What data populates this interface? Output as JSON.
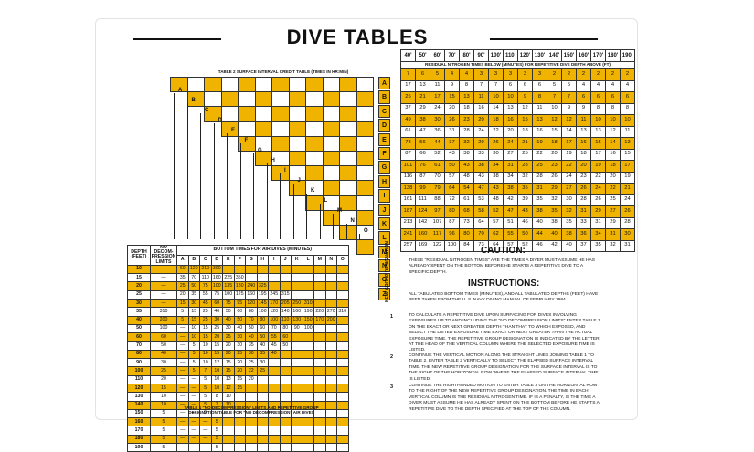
{
  "title": "DIVE TABLES",
  "table3": {
    "caption": "TABLE 3 RESIDUAL NITROGEN TIMES (MINUTES)",
    "depths": [
      "40'",
      "50'",
      "60'",
      "70'",
      "80'",
      "90'",
      "100'",
      "110'",
      "120'",
      "130'",
      "140'",
      "150'",
      "160'",
      "170'",
      "180'",
      "190'"
    ],
    "subheader": "RESIDUAL NITROGEN TIMES BELOW (MINUTES) FOR REPETITIVE DIVE DEPTH ABOVE (FT)",
    "rows": [
      [
        "7",
        "6",
        "5",
        "4",
        "4",
        "3",
        "3",
        "3",
        "3",
        "3",
        "2",
        "2",
        "2",
        "2",
        "2",
        "2"
      ],
      [
        "17",
        "13",
        "11",
        "9",
        "8",
        "7",
        "7",
        "6",
        "6",
        "6",
        "5",
        "5",
        "4",
        "4",
        "4",
        "4"
      ],
      [
        "25",
        "21",
        "17",
        "15",
        "13",
        "11",
        "10",
        "10",
        "9",
        "8",
        "7",
        "7",
        "6",
        "6",
        "6",
        "6"
      ],
      [
        "37",
        "29",
        "24",
        "20",
        "18",
        "16",
        "14",
        "13",
        "12",
        "11",
        "10",
        "9",
        "9",
        "8",
        "8",
        "8"
      ],
      [
        "49",
        "38",
        "30",
        "26",
        "23",
        "20",
        "18",
        "16",
        "15",
        "13",
        "12",
        "12",
        "11",
        "10",
        "10",
        "10"
      ],
      [
        "61",
        "47",
        "36",
        "31",
        "28",
        "24",
        "22",
        "20",
        "18",
        "16",
        "15",
        "14",
        "13",
        "13",
        "12",
        "11"
      ],
      [
        "73",
        "56",
        "44",
        "37",
        "32",
        "29",
        "26",
        "24",
        "21",
        "19",
        "18",
        "17",
        "16",
        "15",
        "14",
        "13"
      ],
      [
        "87",
        "66",
        "52",
        "43",
        "38",
        "33",
        "30",
        "27",
        "25",
        "22",
        "20",
        "19",
        "18",
        "17",
        "16",
        "15"
      ],
      [
        "101",
        "76",
        "61",
        "50",
        "43",
        "38",
        "34",
        "31",
        "28",
        "25",
        "23",
        "22",
        "20",
        "19",
        "18",
        "17"
      ],
      [
        "116",
        "87",
        "70",
        "57",
        "48",
        "43",
        "38",
        "34",
        "32",
        "28",
        "26",
        "24",
        "23",
        "22",
        "20",
        "19"
      ],
      [
        "138",
        "99",
        "79",
        "64",
        "54",
        "47",
        "43",
        "38",
        "35",
        "31",
        "29",
        "27",
        "26",
        "24",
        "22",
        "21"
      ],
      [
        "161",
        "111",
        "88",
        "72",
        "61",
        "53",
        "48",
        "42",
        "39",
        "35",
        "32",
        "30",
        "28",
        "26",
        "25",
        "24"
      ],
      [
        "187",
        "124",
        "97",
        "80",
        "68",
        "58",
        "52",
        "47",
        "43",
        "38",
        "35",
        "32",
        "31",
        "29",
        "27",
        "26"
      ],
      [
        "213",
        "142",
        "107",
        "87",
        "73",
        "64",
        "57",
        "51",
        "46",
        "40",
        "38",
        "35",
        "33",
        "31",
        "29",
        "28"
      ],
      [
        "241",
        "160",
        "117",
        "96",
        "80",
        "70",
        "62",
        "55",
        "50",
        "44",
        "40",
        "38",
        "36",
        "34",
        "31",
        "30"
      ],
      [
        "257",
        "169",
        "122",
        "100",
        "84",
        "73",
        "64",
        "57",
        "52",
        "46",
        "42",
        "40",
        "37",
        "35",
        "32",
        "31"
      ]
    ]
  },
  "groups": [
    "A",
    "B",
    "C",
    "D",
    "E",
    "F",
    "G",
    "H",
    "I",
    "J",
    "K",
    "L",
    "M",
    "N",
    "O",
    "Z"
  ],
  "table1": {
    "header_depth": "DEPTH (FEET)",
    "header_nd": "NO DECOM- PRESSION LIMITS",
    "header_bottom": "BOTTOM TIMES FOR AIR DIVES (MINUTES)",
    "group_letters": [
      "A",
      "B",
      "C",
      "D",
      "E",
      "F",
      "G",
      "H",
      "I",
      "J",
      "K",
      "L",
      "M",
      "N",
      "O"
    ],
    "rows": [
      [
        "10",
        "—",
        "60",
        "120",
        "210",
        "300",
        "",
        "",
        "",
        "",
        "",
        "",
        "",
        "",
        "",
        "",
        ""
      ],
      [
        "15",
        "—",
        "35",
        "70",
        "110",
        "160",
        "225",
        "350",
        "",
        "",
        "",
        "",
        "",
        "",
        "",
        "",
        ""
      ],
      [
        "20",
        "—",
        "25",
        "50",
        "75",
        "100",
        "135",
        "180",
        "240",
        "325",
        "",
        "",
        "",
        "",
        "",
        "",
        ""
      ],
      [
        "25",
        "—",
        "20",
        "35",
        "55",
        "75",
        "100",
        "125",
        "160",
        "195",
        "245",
        "315",
        "",
        "",
        "",
        "",
        ""
      ],
      [
        "30",
        "—",
        "15",
        "30",
        "45",
        "60",
        "75",
        "95",
        "120",
        "145",
        "170",
        "205",
        "250",
        "310",
        "",
        "",
        ""
      ],
      [
        "35",
        "310",
        "5",
        "15",
        "25",
        "40",
        "50",
        "60",
        "80",
        "100",
        "120",
        "140",
        "160",
        "190",
        "220",
        "270",
        "310"
      ],
      [
        "40",
        "200",
        "5",
        "15",
        "25",
        "30",
        "40",
        "50",
        "70",
        "80",
        "100",
        "110",
        "130",
        "150",
        "170",
        "200",
        ""
      ],
      [
        "50",
        "100",
        "—",
        "10",
        "15",
        "25",
        "30",
        "40",
        "50",
        "60",
        "70",
        "80",
        "90",
        "100",
        "",
        "",
        ""
      ],
      [
        "60",
        "60",
        "—",
        "10",
        "15",
        "20",
        "25",
        "30",
        "40",
        "50",
        "55",
        "60",
        "",
        "",
        "",
        "",
        ""
      ],
      [
        "70",
        "50",
        "—",
        "5",
        "10",
        "15",
        "20",
        "30",
        "35",
        "40",
        "45",
        "50",
        "",
        "",
        "",
        "",
        ""
      ],
      [
        "80",
        "40",
        "—",
        "5",
        "10",
        "15",
        "20",
        "25",
        "30",
        "35",
        "40",
        "",
        "",
        "",
        "",
        "",
        ""
      ],
      [
        "90",
        "30",
        "—",
        "5",
        "10",
        "12",
        "15",
        "20",
        "25",
        "30",
        "",
        "",
        "",
        "",
        "",
        "",
        ""
      ],
      [
        "100",
        "25",
        "—",
        "5",
        "7",
        "10",
        "15",
        "20",
        "22",
        "25",
        "",
        "",
        "",
        "",
        "",
        "",
        ""
      ],
      [
        "110",
        "20",
        "—",
        "—",
        "5",
        "10",
        "13",
        "15",
        "20",
        "",
        "",
        "",
        "",
        "",
        "",
        "",
        ""
      ],
      [
        "120",
        "15",
        "—",
        "—",
        "5",
        "10",
        "12",
        "15",
        "",
        "",
        "",
        "",
        "",
        "",
        "",
        "",
        ""
      ],
      [
        "130",
        "10",
        "—",
        "—",
        "5",
        "8",
        "10",
        "",
        "",
        "",
        "",
        "",
        "",
        "",
        "",
        "",
        ""
      ],
      [
        "140",
        "10",
        "—",
        "—",
        "5",
        "7",
        "10",
        "",
        "",
        "",
        "",
        "",
        "",
        "",
        "",
        "",
        ""
      ],
      [
        "150",
        "5",
        "—",
        "—",
        "5",
        "",
        "",
        "",
        "",
        "",
        "",
        "",
        "",
        "",
        "",
        "",
        ""
      ],
      [
        "160",
        "5",
        "—",
        "—",
        "—",
        "5",
        "",
        "",
        "",
        "",
        "",
        "",
        "",
        "",
        "",
        "",
        ""
      ],
      [
        "170",
        "5",
        "—",
        "—",
        "—",
        "5",
        "",
        "",
        "",
        "",
        "",
        "",
        "",
        "",
        "",
        "",
        ""
      ],
      [
        "180",
        "5",
        "—",
        "—",
        "—",
        "5",
        "",
        "",
        "",
        "",
        "",
        "",
        "",
        "",
        "",
        "",
        ""
      ],
      [
        "190",
        "5",
        "—",
        "—",
        "—",
        "5",
        "",
        "",
        "",
        "",
        "",
        "",
        "",
        "",
        "",
        "",
        ""
      ]
    ],
    "caption": "TABLE 1 \"NO DECOMPRESSION\" LIMITS AND REPETITIVE GROUP DESIGNATION TABLE FOR \"NO DECOMPRESSION\" AIR DIVES"
  },
  "table2": {
    "caption": "TABLE 2 SURFACE INTERVAL CREDIT TABLE (TIMES IN HR:MIN)",
    "vertical_label": "NEW GROUP DESIGNATION"
  },
  "caution": {
    "heading": "CAUTION:",
    "text": "THESE \"RESIDUAL NITROGEN TIMES\" ARE THE TIMES A DIVER MUST ASSUME HE HAS ALREADY SPENT ON THE BOTTOM BEFORE HE STARTS A REPETITIVE DIVE TO A SPECIFIC DEPTH."
  },
  "instructions": {
    "heading": "INSTRUCTIONS:",
    "intro": "ALL TABULATED BOTTOM TIMES (MINUTES), AND ALL TABULATED DEPTHS (FEET) HAVE BEEN TAKEN FROM THE U. S. NAVY DIVING MANUAL OF FEBRUARY 1984.",
    "steps": [
      {
        "num": "1",
        "text": "TO CALCULATE A REPETITIVE DIVE UPON SURFACING FOR DIVES INVOLVING EXPOSURES UP TO AND INCLUDING THE \"NO DECOMPRESSION LIMITS\" ENTER TABLE 1 ON THE EXACT OR NEXT GREATER DEPTH THAN THAT TO WHICH EXPOSED, AND SELECT THE LISTED EXPOSURE TIME EXACT OR NEXT GREATER THAN THE ACTUAL EXPOSURE TIME. THE REPETITIVE GROUP DESIGNATION IS INDICATED BY THE LETTER AT THE HEAD OF THE VERTICAL COLUMN WHERE THE SELECTED EXPOSURE TIME IS LISTED."
      },
      {
        "num": "2",
        "text": "CONTINUE THE VERTICAL MOTION ALONG THE STRAIGHT LINES JOINING TABLE 1 TO TABLE 2. ENTER TABLE 2 VERTICALLY TO SELECT THE ELAPSED SURFACE INTERVAL TIME. THE NEW REPETITIVE GROUP DESIGNATION FOR THE SURFACE INTERVAL IS TO THE RIGHT OF THE HORIZONTAL ROW WHERE THE ELAPSED SURFACE INTERVAL TIME IS LISTED."
      },
      {
        "num": "3",
        "text": "CONTINUE THE RIGHTHANDED MOTION TO ENTER TABLE 3 ON THE HORIZONTAL ROW TO THE RIGHT OF THE NEW REPETITIVE GROUP DESIGNATION. THE TIME IN EACH VERTICAL COLUMN IS THE RESIDUAL NITROGEN TIME. IF IS A PENALTY, IS THE TIME A DIVER MUST ASSUME HE HAS ALREADY SPENT ON THE BOTTOM BEFORE HE STARTS A REPETITIVE DIVE TO THE DEPTH SPECIFIED AT THE TOP OF THE COLUMN."
      }
    ]
  },
  "colors": {
    "yellow": "#f0b400",
    "ink": "#111111"
  }
}
